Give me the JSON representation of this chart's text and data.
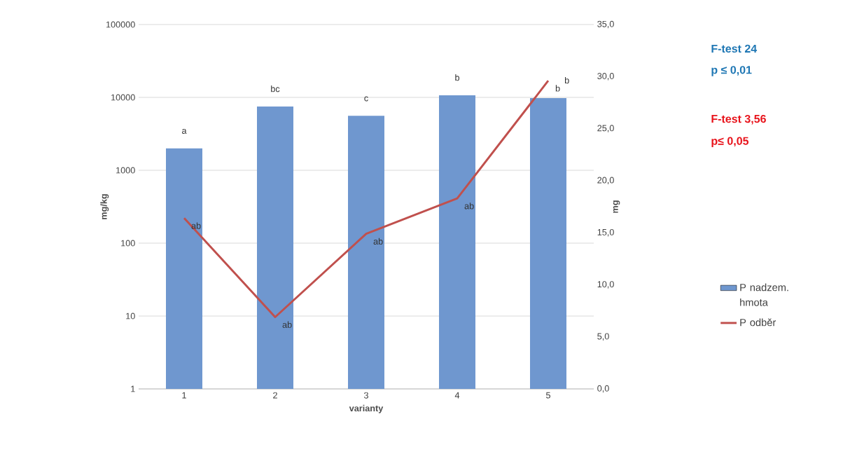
{
  "chart_data": {
    "type": "bar",
    "categories": [
      "1",
      "2",
      "3",
      "4",
      "5"
    ],
    "xlabel": "varianty",
    "ylabel": "mg/kg",
    "y2label": "mg",
    "series": [
      {
        "name": "P nadzem. hmota",
        "color": "#6f97cf",
        "values": [
          2000,
          7500,
          5600,
          10700,
          9800
        ],
        "value_labels": [
          "a",
          "bc",
          "c",
          "b",
          "b"
        ]
      },
      {
        "name": "P odběr",
        "type": "line",
        "axis": "y2",
        "color": "#c0504d",
        "values": [
          16.4,
          6.9,
          14.9,
          18.3,
          29.6
        ],
        "value_labels": [
          "ab",
          "ab",
          "ab",
          "ab",
          "b"
        ]
      }
    ],
    "log": "y",
    "ylim": [
      1,
      100000
    ],
    "yticks": [
      1,
      10,
      100,
      1000,
      10000,
      100000
    ],
    "y2lim": [
      0,
      35
    ],
    "y2ticks": [
      {
        "value": 0,
        "label": "0,0"
      },
      {
        "value": 5,
        "label": "5,0"
      },
      {
        "value": 10,
        "label": "10,0"
      },
      {
        "value": 15,
        "label": "15,0"
      },
      {
        "value": 20,
        "label": "20,0"
      },
      {
        "value": 25,
        "label": "25,0"
      },
      {
        "value": 30,
        "label": "30,0"
      },
      {
        "value": 35,
        "label": "35,0"
      }
    ],
    "grid": "y",
    "legend": "right",
    "marker": "none",
    "line_style": "solid",
    "annotations": [
      "F-test 24",
      "p ≤ 0,01",
      "F-test 3,56",
      "p≤ 0,05"
    ]
  }
}
